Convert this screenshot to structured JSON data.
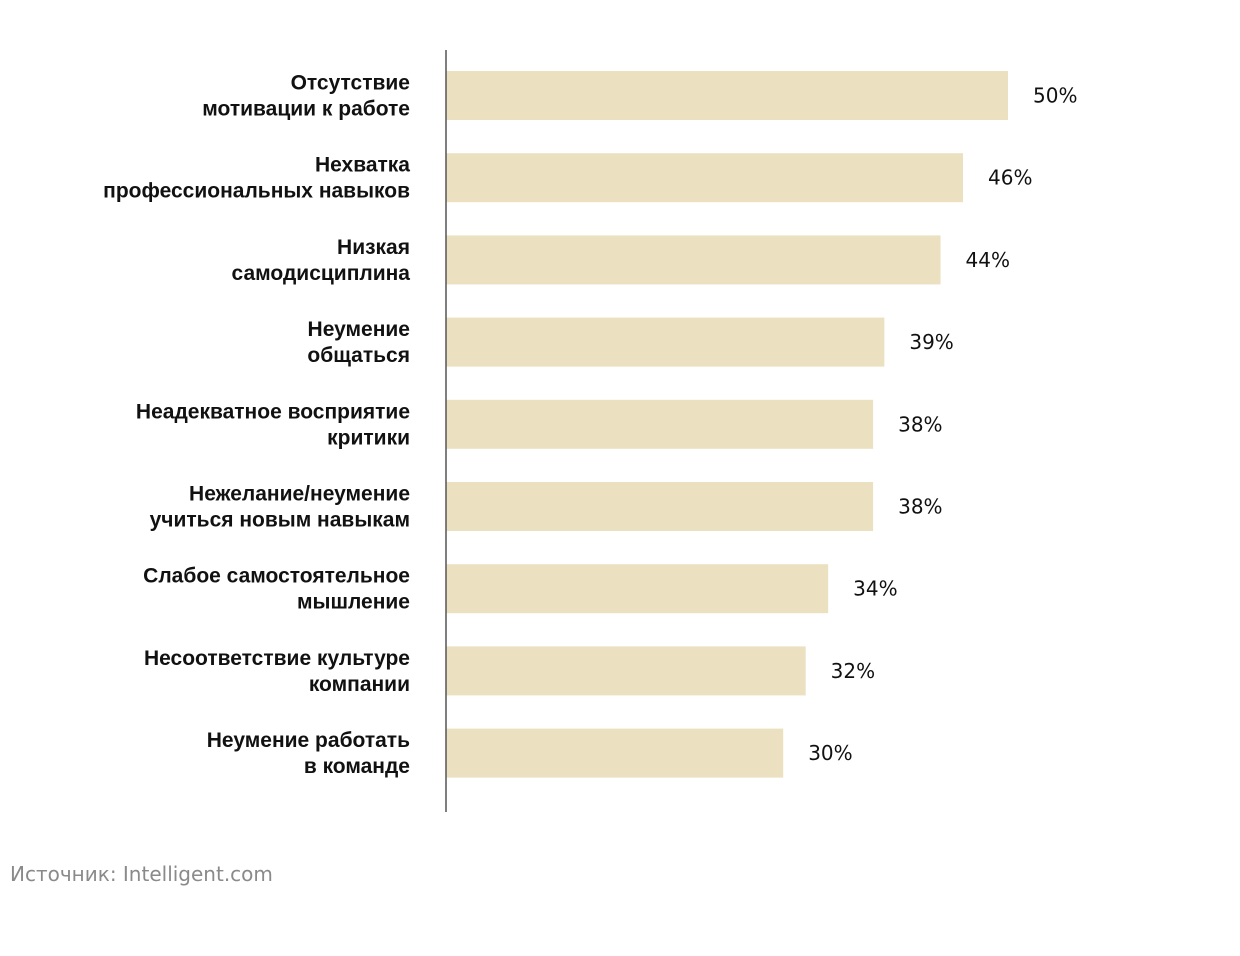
{
  "chart_data": {
    "type": "bar",
    "orientation": "horizontal",
    "categories": [
      [
        "Отсутствие",
        "мотивации к работе"
      ],
      [
        "Нехватка",
        "профессиональных навыков"
      ],
      [
        "Низкая",
        "самодисциплина"
      ],
      [
        "Неумение",
        "общаться"
      ],
      [
        "Неадекватное восприятие",
        "критики"
      ],
      [
        "Нежелание/неумение",
        "учиться новым навыкам"
      ],
      [
        "Слабое самостоятельное",
        "мышление"
      ],
      [
        "Несоответствие культуре",
        "компании"
      ],
      [
        "Неумение работать",
        "в команде"
      ]
    ],
    "values": [
      50,
      46,
      44,
      39,
      38,
      38,
      34,
      32,
      30
    ],
    "value_labels": [
      "50%",
      "46%",
      "44%",
      "39%",
      "38%",
      "38%",
      "34%",
      "32%",
      "30%"
    ],
    "unit": "%",
    "xlim": [
      0,
      70
    ],
    "grid": false,
    "legend": "none",
    "bar_color": "#ebe0bf",
    "axis_color": "#555555"
  },
  "source": "Источник: Intelligent.com"
}
